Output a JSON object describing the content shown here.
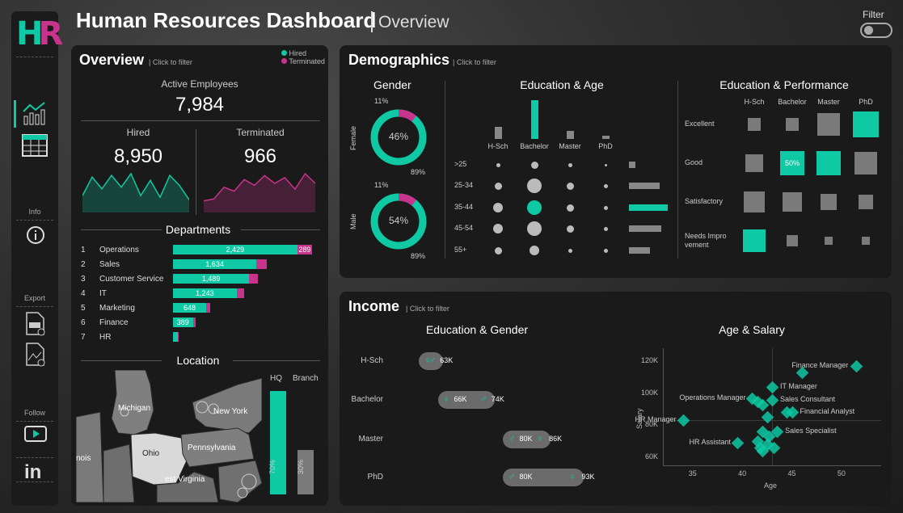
{
  "header": {
    "title": "Human Resources Dashboard",
    "subtitle": "Overview",
    "filter_label": "Filter"
  },
  "sidebar": {
    "logo_h": "H",
    "logo_r": "R",
    "info_label": "Info",
    "export_label": "Export",
    "follow_label": "Follow"
  },
  "colors": {
    "teal": "#0ec9a4",
    "magenta": "#c8338c",
    "panel": "#1a1a1a"
  },
  "overview": {
    "title": "Overview",
    "hint": "| Click to filter",
    "legend": {
      "hired": "Hired",
      "terminated": "Terminated"
    },
    "active_label": "Active Employees",
    "active_value": "7,984",
    "hired_label": "Hired",
    "hired_value": "8,950",
    "terminated_label": "Terminated",
    "terminated_value": "966",
    "hired_trend": [
      20,
      42,
      28,
      44,
      30,
      46,
      20,
      38,
      18,
      44,
      32,
      15
    ],
    "terminated_trend": [
      12,
      14,
      26,
      22,
      34,
      28,
      38,
      30,
      36,
      24,
      40,
      30
    ]
  },
  "departments": {
    "title": "Departments",
    "rows": [
      {
        "rank": "1",
        "name": "Operations",
        "hired": 2429,
        "hired_label": "2,429",
        "term": 289,
        "term_label": "289"
      },
      {
        "rank": "2",
        "name": "Sales",
        "hired": 1634,
        "hired_label": "1,634",
        "term": 194,
        "term_label": ""
      },
      {
        "rank": "3",
        "name": "Customer Service",
        "hired": 1489,
        "hired_label": "1,489",
        "term": 177,
        "term_label": ""
      },
      {
        "rank": "4",
        "name": "IT",
        "hired": 1243,
        "hired_label": "1,243",
        "term": 148,
        "term_label": ""
      },
      {
        "rank": "5",
        "name": "Marketing",
        "hired": 648,
        "hired_label": "648",
        "term": 77,
        "term_label": ""
      },
      {
        "rank": "6",
        "name": "Finance",
        "hired": 389,
        "hired_label": "389",
        "term": 46,
        "term_label": ""
      },
      {
        "rank": "7",
        "name": "HR",
        "hired": 100,
        "hired_label": "",
        "term": 12,
        "term_label": ""
      }
    ]
  },
  "location": {
    "title": "Location",
    "states": [
      "Michigan",
      "New York",
      "Ohio",
      "Pennsylvania",
      "West Virginia",
      "Illinois"
    ],
    "state_labels": {
      "michigan": "Michigan",
      "newyork": "New York",
      "ohio": "Ohio",
      "penn": "Pennsylvania",
      "wv": "est Virginia",
      "il": "nois"
    },
    "hq_label": "HQ",
    "branch_label": "Branch",
    "hq_pct": 70,
    "hq_pct_label": "70%",
    "branch_pct": 30,
    "branch_pct_label": "30%"
  },
  "demographics": {
    "title": "Demographics",
    "hint": "| Click to filter",
    "gender": {
      "title": "Gender",
      "female": {
        "label": "Female",
        "center": "46%",
        "top": "11%",
        "bottom": "89%",
        "term_share": 11
      },
      "male": {
        "label": "Male",
        "center": "54%",
        "top": "11%",
        "bottom": "89%",
        "term_share": 11
      }
    },
    "edu_age": {
      "title": "Education & Age",
      "education": [
        "H-Sch",
        "Bachelor",
        "Master",
        "PhD"
      ],
      "edu_share": [
        15,
        48,
        10,
        4
      ],
      "ages": [
        ">25",
        "25-34",
        "35-44",
        "45-54",
        "55+"
      ],
      "age_share": [
        8,
        38,
        48,
        40,
        26
      ],
      "dot_sizes": [
        [
          1,
          2,
          1,
          0
        ],
        [
          2,
          4,
          2,
          1
        ],
        [
          3,
          4,
          2,
          1
        ],
        [
          3,
          4,
          2,
          1
        ],
        [
          2,
          3,
          1,
          1
        ]
      ],
      "highlight": [
        2,
        1
      ]
    },
    "edu_perf": {
      "title": "Education & Performance",
      "education": [
        "H-Sch",
        "Bachelor",
        "Master",
        "PhD"
      ],
      "ratings": [
        "Excellent",
        "Good",
        "Satisfactory",
        "Needs Improvement"
      ],
      "rating_lines": [
        [
          "Excellent"
        ],
        [
          "Good"
        ],
        [
          "Satisfactory"
        ],
        [
          "Needs Impro",
          "vement"
        ]
      ],
      "sizes": [
        [
          16,
          16,
          28,
          32
        ],
        [
          22,
          30,
          30,
          28
        ],
        [
          26,
          24,
          20,
          18
        ],
        [
          28,
          14,
          10,
          10
        ]
      ],
      "teal": [
        [
          0,
          3
        ],
        [
          1,
          1
        ],
        [
          1,
          2
        ],
        [
          3,
          0
        ]
      ],
      "label_cell": "50%"
    }
  },
  "income": {
    "title": "Income",
    "hint": "| Click to filter",
    "edu_gender": {
      "title": "Education & Gender",
      "rows": [
        {
          "edu": "H-Sch",
          "female": "",
          "male": "63K",
          "fval": 62,
          "mval": 63
        },
        {
          "edu": "Bachelor",
          "female": "66K",
          "male": "74K",
          "fval": 66,
          "mval": 74
        },
        {
          "edu": "Master",
          "female": "86K",
          "male": "80K",
          "fval": 86,
          "mval": 80
        },
        {
          "edu": "PhD",
          "female": "93K",
          "male": "80K",
          "fval": 93,
          "mval": 80
        }
      ],
      "xrange": [
        55,
        100
      ]
    },
    "age_salary": {
      "title": "Age & Salary",
      "xlabel": "Age",
      "ylabel": "Salary",
      "xticks": [
        "35",
        "40",
        "45",
        "50"
      ],
      "yticks": [
        "120K",
        "100K",
        "80K",
        "60K"
      ],
      "xlim": [
        32,
        54
      ],
      "ylim": [
        55,
        128
      ],
      "points": [
        {
          "age": 51.5,
          "sal": 117,
          "label": "Finance Manager"
        },
        {
          "age": 46,
          "sal": 113,
          "label": ""
        },
        {
          "age": 43,
          "sal": 104,
          "label": "IT Manager"
        },
        {
          "age": 41,
          "sal": 97,
          "label": "Operations Manager"
        },
        {
          "age": 43,
          "sal": 96,
          "label": "Sales Consultant"
        },
        {
          "age": 45,
          "sal": 88,
          "label": "Financial Analyst"
        },
        {
          "age": 34,
          "sal": 83,
          "label": "HR Manager"
        },
        {
          "age": 43.5,
          "sal": 76,
          "label": "Sales Specialist"
        },
        {
          "age": 39.5,
          "sal": 69,
          "label": "HR Assistant"
        },
        {
          "age": 41.5,
          "sal": 95,
          "label": ""
        },
        {
          "age": 42,
          "sal": 93,
          "label": ""
        },
        {
          "age": 42.5,
          "sal": 85,
          "label": ""
        },
        {
          "age": 44.5,
          "sal": 88,
          "label": ""
        },
        {
          "age": 42,
          "sal": 76,
          "label": ""
        },
        {
          "age": 41.5,
          "sal": 70,
          "label": ""
        },
        {
          "age": 42.5,
          "sal": 68,
          "label": ""
        },
        {
          "age": 42,
          "sal": 64,
          "label": ""
        },
        {
          "age": 41.8,
          "sal": 66,
          "label": ""
        },
        {
          "age": 42.7,
          "sal": 73,
          "label": ""
        },
        {
          "age": 43.2,
          "sal": 66,
          "label": ""
        }
      ]
    }
  }
}
